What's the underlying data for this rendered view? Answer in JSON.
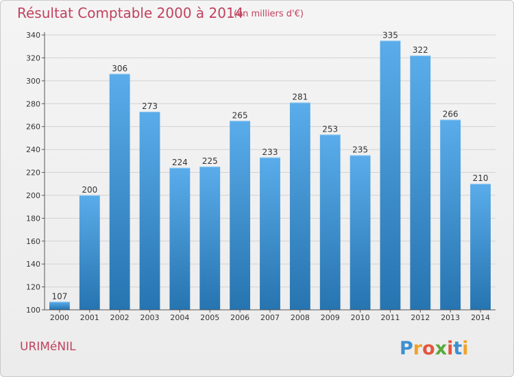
{
  "header": {
    "title": "Résultat Comptable 2000 à 2014",
    "subtitle": "(en milliers d'€)"
  },
  "footer": {
    "place": "URIMéNIL",
    "logo_text": "Proxiti"
  },
  "colors": {
    "bar_top": "#5aacea",
    "bar_bottom": "#2674b0",
    "accent": "#c0415d"
  },
  "chart_data": {
    "type": "bar",
    "categories": [
      "2000",
      "2001",
      "2002",
      "2003",
      "2004",
      "2005",
      "2006",
      "2007",
      "2008",
      "2009",
      "2010",
      "2011",
      "2012",
      "2013",
      "2014"
    ],
    "values": [
      107,
      200,
      306,
      273,
      224,
      225,
      265,
      233,
      281,
      253,
      235,
      335,
      322,
      266,
      210
    ],
    "ylim": [
      100,
      340
    ],
    "yticks": [
      100,
      120,
      140,
      160,
      180,
      200,
      220,
      240,
      260,
      280,
      300,
      320,
      340
    ],
    "grid": true,
    "xlabel": "",
    "ylabel": ""
  }
}
